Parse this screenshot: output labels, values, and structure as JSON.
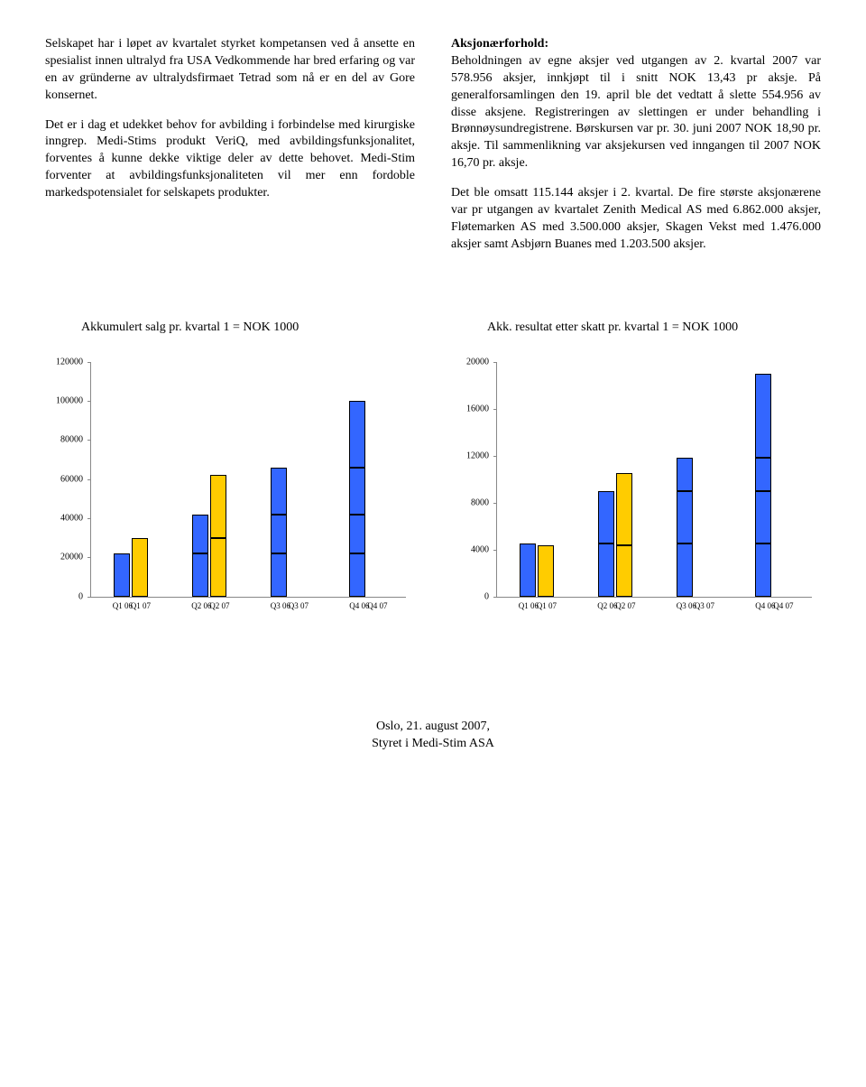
{
  "left_column": {
    "p1": "Selskapet har i løpet av kvartalet styrket kompetansen ved å ansette en spesialist innen ultralyd fra USA Vedkommende har bred erfaring og var en av gründerne av ultralydsfirmaet Tetrad som nå er en del av Gore konsernet.",
    "p2": "Det er i dag et udekket behov for avbilding i forbindelse med kirurgiske inngrep. Medi-Stims produkt VeriQ, med avbildingsfunksjonalitet, forventes å kunne dekke viktige deler av dette behovet. Medi-Stim forventer at avbildingsfunksjonaliteten vil mer enn fordoble markedspotensialet for selskapets produkter."
  },
  "right_column": {
    "heading": "Aksjonærforhold:",
    "p1": "Beholdningen av egne aksjer ved utgangen av 2. kvartal 2007 var 578.956 aksjer, innkjøpt til i snitt NOK 13,43 pr aksje. På generalforsamlingen den 19. april ble det vedtatt å slette 554.956 av disse aksjene. Registreringen av slettingen er under behandling i Brønnøysundregistrene. Børskursen var pr. 30. juni 2007 NOK 18,90 pr. aksje. Til sammenlikning var aksjekursen ved inngangen til 2007 NOK 16,70 pr. aksje.",
    "p2": "Det ble omsatt 115.144 aksjer i 2. kvartal. De fire største aksjonærene var pr utgangen av kvartalet Zenith Medical AS med 6.862.000 aksjer, Fløtemarken AS med 3.500.000 aksjer, Skagen Vekst med 1.476.000 aksjer samt Asbjørn Buanes med 1.203.500 aksjer."
  },
  "chart1": {
    "title": "Akkumulert salg pr. kvartal 1 = NOK 1000",
    "type": "bar",
    "y_max": 120000,
    "y_ticks": [
      0,
      20000,
      40000,
      60000,
      80000,
      100000,
      120000
    ],
    "categories": [
      "Q1 06",
      "Q1 07",
      "Q2 06",
      "Q2 07",
      "Q3 06",
      "Q3 07",
      "Q4 06",
      "Q4 07"
    ],
    "groups": [
      {
        "bars": [
          {
            "segments": [
              {
                "value": 22000,
                "color": "#3366ff"
              }
            ]
          },
          {
            "segments": [
              {
                "value": 30000,
                "color": "#ffcc00"
              }
            ]
          }
        ]
      },
      {
        "bars": [
          {
            "segments": [
              {
                "value": 22000,
                "color": "#3366ff"
              },
              {
                "value": 20000,
                "color": "#3366ff"
              }
            ]
          },
          {
            "segments": [
              {
                "value": 30000,
                "color": "#ffcc00"
              },
              {
                "value": 32000,
                "color": "#ffcc00"
              }
            ]
          }
        ]
      },
      {
        "bars": [
          {
            "segments": [
              {
                "value": 22000,
                "color": "#3366ff"
              },
              {
                "value": 20000,
                "color": "#3366ff"
              },
              {
                "value": 24000,
                "color": "#3366ff"
              }
            ]
          },
          {
            "segments": []
          }
        ]
      },
      {
        "bars": [
          {
            "segments": [
              {
                "value": 22000,
                "color": "#3366ff"
              },
              {
                "value": 20000,
                "color": "#3366ff"
              },
              {
                "value": 24000,
                "color": "#3366ff"
              },
              {
                "value": 34000,
                "color": "#3366ff"
              }
            ]
          },
          {
            "segments": []
          }
        ]
      }
    ],
    "colors": {
      "blue": "#3366ff",
      "yellow": "#ffcc00"
    }
  },
  "chart2": {
    "title": "Akk. resultat etter skatt pr. kvartal 1 = NOK 1000",
    "type": "bar",
    "y_max": 20000,
    "y_ticks": [
      0,
      4000,
      8000,
      12000,
      16000,
      20000
    ],
    "categories": [
      "Q1 06",
      "Q1 07",
      "Q2 06",
      "Q2 07",
      "Q3 06",
      "Q3 07",
      "Q4 06",
      "Q4 07"
    ],
    "groups": [
      {
        "bars": [
          {
            "segments": [
              {
                "value": 4500,
                "color": "#3366ff"
              }
            ]
          },
          {
            "segments": [
              {
                "value": 4400,
                "color": "#ffcc00"
              }
            ]
          }
        ]
      },
      {
        "bars": [
          {
            "segments": [
              {
                "value": 4500,
                "color": "#3366ff"
              },
              {
                "value": 4500,
                "color": "#3366ff"
              }
            ]
          },
          {
            "segments": [
              {
                "value": 4400,
                "color": "#ffcc00"
              },
              {
                "value": 6100,
                "color": "#ffcc00"
              }
            ]
          }
        ]
      },
      {
        "bars": [
          {
            "segments": [
              {
                "value": 4500,
                "color": "#3366ff"
              },
              {
                "value": 4500,
                "color": "#3366ff"
              },
              {
                "value": 2800,
                "color": "#3366ff"
              }
            ]
          },
          {
            "segments": []
          }
        ]
      },
      {
        "bars": [
          {
            "segments": [
              {
                "value": 4500,
                "color": "#3366ff"
              },
              {
                "value": 4500,
                "color": "#3366ff"
              },
              {
                "value": 2800,
                "color": "#3366ff"
              },
              {
                "value": 7200,
                "color": "#3366ff"
              }
            ]
          },
          {
            "segments": []
          }
        ]
      }
    ],
    "colors": {
      "blue": "#3366ff",
      "yellow": "#ffcc00"
    }
  },
  "footer": {
    "line1": "Oslo, 21. august 2007,",
    "line2": "Styret i Medi-Stim ASA"
  }
}
